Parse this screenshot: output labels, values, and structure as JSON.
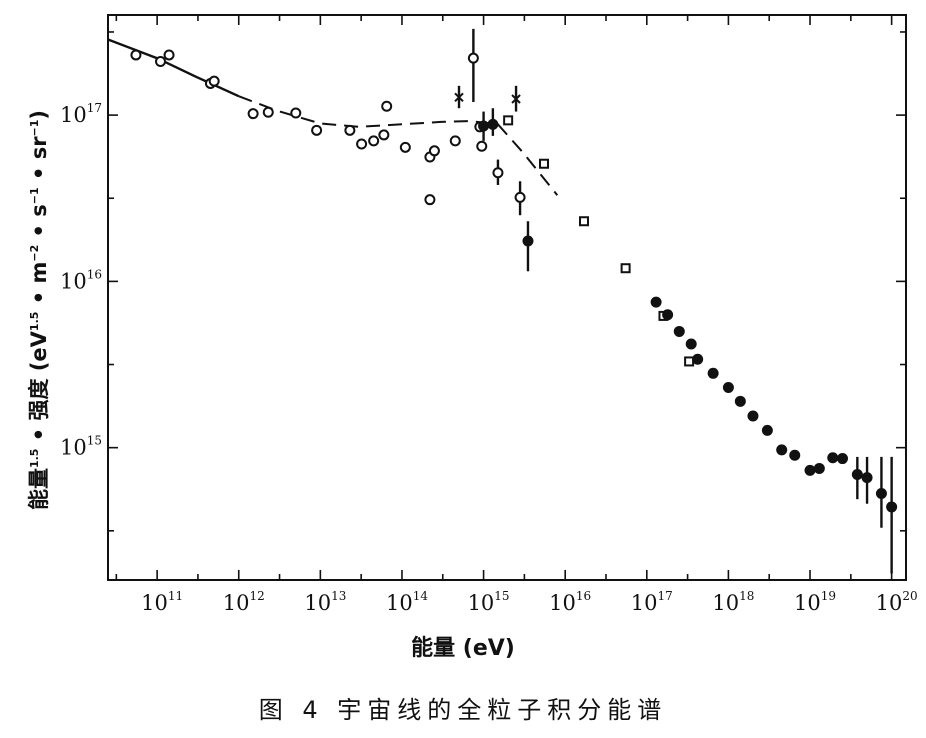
{
  "chart_data": {
    "type": "scatter",
    "title": "",
    "xlabel": "能量 (eV)",
    "ylabel": "能量1.5 • 强度 (eV1.5 • m−2 • s−1 • sr−1)",
    "xscale": "log",
    "yscale": "log",
    "xlim": [
      25000000000.0,
      1.5e+20
    ],
    "ylim": [
      160000000000000.0,
      4e+17
    ],
    "x_ticks": [
      {
        "base": "10",
        "exp": "11",
        "value": 100000000000.0
      },
      {
        "base": "10",
        "exp": "12",
        "value": 1000000000000.0
      },
      {
        "base": "10",
        "exp": "13",
        "value": 10000000000000.0
      },
      {
        "base": "10",
        "exp": "14",
        "value": 100000000000000.0
      },
      {
        "base": "10",
        "exp": "15",
        "value": 1000000000000000.0
      },
      {
        "base": "10",
        "exp": "16",
        "value": 1e+16
      },
      {
        "base": "10",
        "exp": "17",
        "value": 1e+17
      },
      {
        "base": "10",
        "exp": "18",
        "value": 1e+18
      },
      {
        "base": "10",
        "exp": "19",
        "value": 1e+19
      },
      {
        "base": "10",
        "exp": "20",
        "value": 1e+20
      }
    ],
    "y_ticks": [
      {
        "base": "10",
        "exp": "15",
        "value": 1000000000000000.0
      },
      {
        "base": "10",
        "exp": "16",
        "value": 1e+16
      },
      {
        "base": "10",
        "exp": "17",
        "value": 1e+17
      }
    ],
    "grid": false,
    "series": [
      {
        "marker": "open-circle",
        "points": [
          {
            "x": 55000000000.0,
            "y": 2.3e+17
          },
          {
            "x": 110000000000.0,
            "y": 2.1e+17
          },
          {
            "x": 140000000000.0,
            "y": 2.3e+17
          },
          {
            "x": 450000000000.0,
            "y": 1.55e+17
          },
          {
            "x": 500000000000.0,
            "y": 1.6e+17
          },
          {
            "x": 1500000000000.0,
            "y": 1.02e+17
          },
          {
            "x": 2300000000000.0,
            "y": 1.04e+17
          },
          {
            "x": 5000000000000.0,
            "y": 1.03e+17
          },
          {
            "x": 9000000000000.0,
            "y": 8.1e+16
          },
          {
            "x": 23000000000000.0,
            "y": 8.1e+16
          },
          {
            "x": 32000000000000.0,
            "y": 6.7e+16
          },
          {
            "x": 45000000000000.0,
            "y": 7e+16
          },
          {
            "x": 60000000000000.0,
            "y": 7.6e+16
          },
          {
            "x": 65000000000000.0,
            "y": 1.13e+17
          },
          {
            "x": 110000000000000.0,
            "y": 6.4e+16
          },
          {
            "x": 220000000000000.0,
            "y": 5.6e+16
          },
          {
            "x": 250000000000000.0,
            "y": 6.1e+16
          },
          {
            "x": 220000000000000.0,
            "y": 3.1e+16
          },
          {
            "x": 450000000000000.0,
            "y": 7e+16
          },
          {
            "x": 750000000000000.0,
            "y": 2.2e+17
          },
          {
            "x": 950000000000000.0,
            "y": 6.5e+16
          },
          {
            "x": 900000000000000.0,
            "y": 8.5e+16
          },
          {
            "x": 1500000000000000.0,
            "y": 4.5e+16
          },
          {
            "x": 2800000000000000.0,
            "y": 3.2e+16
          }
        ]
      },
      {
        "marker": "cross",
        "points": [
          {
            "x": 500000000000000.0,
            "y": 1.28e+17
          },
          {
            "x": 2500000000000000.0,
            "y": 1.25e+17
          }
        ]
      },
      {
        "marker": "open-square",
        "points": [
          {
            "x": 2000000000000000.0,
            "y": 9.3e+16
          },
          {
            "x": 5500000000000000.0,
            "y": 5.1e+16
          },
          {
            "x": 1.7e+16,
            "y": 2.3e+16
          },
          {
            "x": 5.5e+16,
            "y": 1.2e+16
          },
          {
            "x": 1.6e+17,
            "y": 6200000000000000.0
          },
          {
            "x": 3.3e+17,
            "y": 3300000000000000.0
          }
        ]
      },
      {
        "marker": "filled-circle",
        "points": [
          {
            "x": 1000000000000000.0,
            "y": 8.6e+16
          },
          {
            "x": 1300000000000000.0,
            "y": 8.8e+16
          },
          {
            "x": 3500000000000000.0,
            "y": 1.75e+16
          },
          {
            "x": 1.3e+17,
            "y": 7500000000000000.0
          },
          {
            "x": 1.8e+17,
            "y": 6300000000000000.0
          },
          {
            "x": 2.5e+17,
            "y": 5000000000000000.0
          },
          {
            "x": 3.5e+17,
            "y": 4200000000000000.0
          },
          {
            "x": 4.2e+17,
            "y": 3400000000000000.0
          },
          {
            "x": 6.5e+17,
            "y": 2800000000000000.0
          },
          {
            "x": 1e+18,
            "y": 2300000000000000.0
          },
          {
            "x": 1.4e+18,
            "y": 1900000000000000.0
          },
          {
            "x": 2e+18,
            "y": 1550000000000000.0
          },
          {
            "x": 3e+18,
            "y": 1270000000000000.0
          },
          {
            "x": 4.5e+18,
            "y": 970000000000000.0
          },
          {
            "x": 6.5e+18,
            "y": 900000000000000.0
          },
          {
            "x": 1e+19,
            "y": 730000000000000.0
          },
          {
            "x": 1.3e+19,
            "y": 750000000000000.0
          },
          {
            "x": 1.9e+19,
            "y": 870000000000000.0
          },
          {
            "x": 2.5e+19,
            "y": 860000000000000.0
          },
          {
            "x": 3.8e+19,
            "y": 690000000000000.0
          },
          {
            "x": 5e+19,
            "y": 660000000000000.0
          },
          {
            "x": 7.5e+19,
            "y": 530000000000000.0
          },
          {
            "x": 1e+20,
            "y": 440000000000000.0
          }
        ]
      }
    ],
    "error_bars": [
      {
        "x": 750000000000000.0,
        "y_low": 1.2e+17,
        "y_high": 3.3e+17
      },
      {
        "x": 500000000000000.0,
        "y_low": 1.1e+17,
        "y_high": 1.5e+17
      },
      {
        "x": 2500000000000000.0,
        "y_low": 1.05e+17,
        "y_high": 1.5e+17
      },
      {
        "x": 1000000000000000.0,
        "y_low": 7e+16,
        "y_high": 1.05e+17
      },
      {
        "x": 1300000000000000.0,
        "y_low": 7.5e+16,
        "y_high": 1.1e+17
      },
      {
        "x": 1500000000000000.0,
        "y_low": 3.8e+16,
        "y_high": 5.4e+16
      },
      {
        "x": 2800000000000000.0,
        "y_low": 2.5e+16,
        "y_high": 4e+16
      },
      {
        "x": 3500000000000000.0,
        "y_low": 1.15e+16,
        "y_high": 2.3e+16
      },
      {
        "x": 3.8e+19,
        "y_low": 490000000000000.0,
        "y_high": 880000000000000.0
      },
      {
        "x": 5e+19,
        "y_low": 460000000000000.0,
        "y_high": 880000000000000.0
      },
      {
        "x": 7.5e+19,
        "y_low": 330000000000000.0,
        "y_high": 880000000000000.0
      },
      {
        "x": 1e+20,
        "y_low": 175000000000000.0,
        "y_high": 880000000000000.0
      }
    ],
    "solid_curve": [
      {
        "x": 25000000000.0,
        "y": 2.85e+17
      },
      {
        "x": 100000000000.0,
        "y": 2.2e+17
      },
      {
        "x": 300000000000.0,
        "y": 1.7e+17
      },
      {
        "x": 1000000000000.0,
        "y": 1.3e+17
      }
    ],
    "dashed_curve": [
      {
        "x": 1000000000000.0,
        "y": 1.3e+17
      },
      {
        "x": 3000000000000.0,
        "y": 1.06e+17
      },
      {
        "x": 10000000000000.0,
        "y": 8.9e+16
      },
      {
        "x": 30000000000000.0,
        "y": 8.5e+16
      },
      {
        "x": 100000000000000.0,
        "y": 8.8e+16
      },
      {
        "x": 300000000000000.0,
        "y": 9.1e+16
      },
      {
        "x": 700000000000000.0,
        "y": 9.2e+16
      },
      {
        "x": 1500000000000000.0,
        "y": 8.8e+16
      },
      {
        "x": 3000000000000000.0,
        "y": 6e+16
      },
      {
        "x": 8000000000000000.0,
        "y": 3.3e+16
      }
    ]
  },
  "ylabel_parts": {
    "prefix": "能量",
    "prefix_exp": "1.5",
    "mid": " • 强度 (eV",
    "mid_exp": "1.5",
    "rest": " • m",
    "m_exp": "−2",
    "s": " • s",
    "s_exp": "−1",
    "sr": " • sr",
    "sr_exp": "−1",
    "close": ")"
  },
  "xlabel_text": "能量 (eV)",
  "caption": "图 4 宇宙线的全粒子积分能谱",
  "colors": {
    "ink": "#111111",
    "background": "#ffffff"
  }
}
